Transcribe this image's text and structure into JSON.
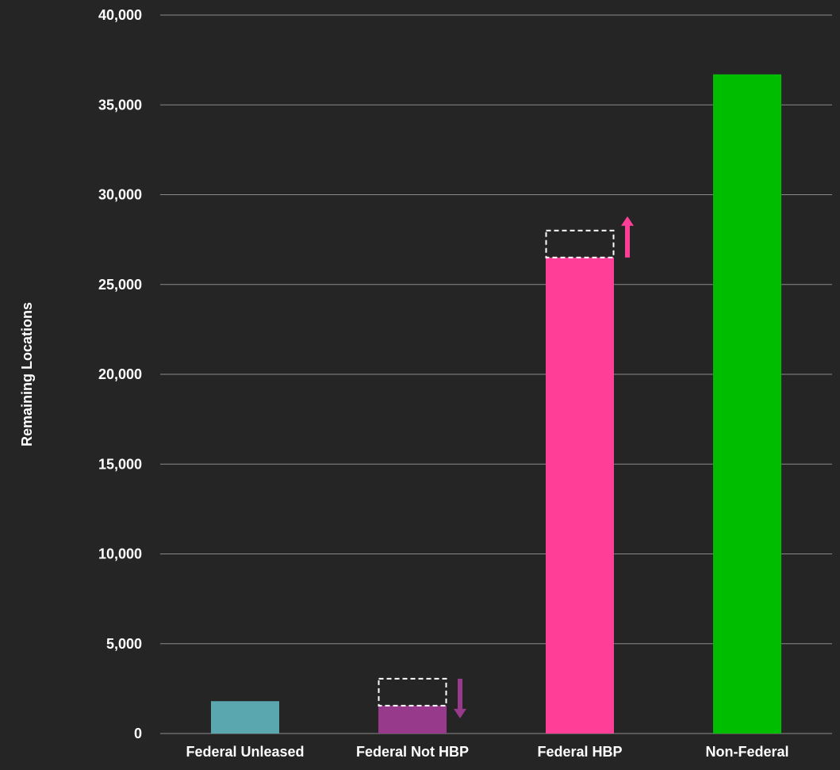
{
  "chart_data": {
    "type": "bar",
    "title": "",
    "xlabel": "",
    "ylabel": "Remaining Locations",
    "ylim": [
      0,
      40000
    ],
    "yticks": [
      0,
      5000,
      10000,
      15000,
      20000,
      25000,
      30000,
      35000,
      40000
    ],
    "ytick_labels": [
      "0",
      "5,000",
      "10,000",
      "15,000",
      "20,000",
      "25,000",
      "30,000",
      "35,000",
      "40,000"
    ],
    "grid": true,
    "legend": "none",
    "categories": [
      "Federal Unleased",
      "Federal Not HBP",
      "Federal HBP",
      "Non-Federal"
    ],
    "values": [
      1800,
      1550,
      26500,
      36700
    ],
    "colors": [
      "#5aa7b0",
      "#973a8b",
      "#ff3e98",
      "#00bd00"
    ],
    "annotations": [
      {
        "category": "Federal Not HBP",
        "kind": "dashed-box",
        "from": 1550,
        "to": 3050,
        "arrow": "down",
        "arrow_color": "#973a8b"
      },
      {
        "category": "Federal HBP",
        "kind": "dashed-box",
        "from": 26500,
        "to": 28000,
        "arrow": "up",
        "arrow_color": "#ff3e98"
      }
    ]
  }
}
